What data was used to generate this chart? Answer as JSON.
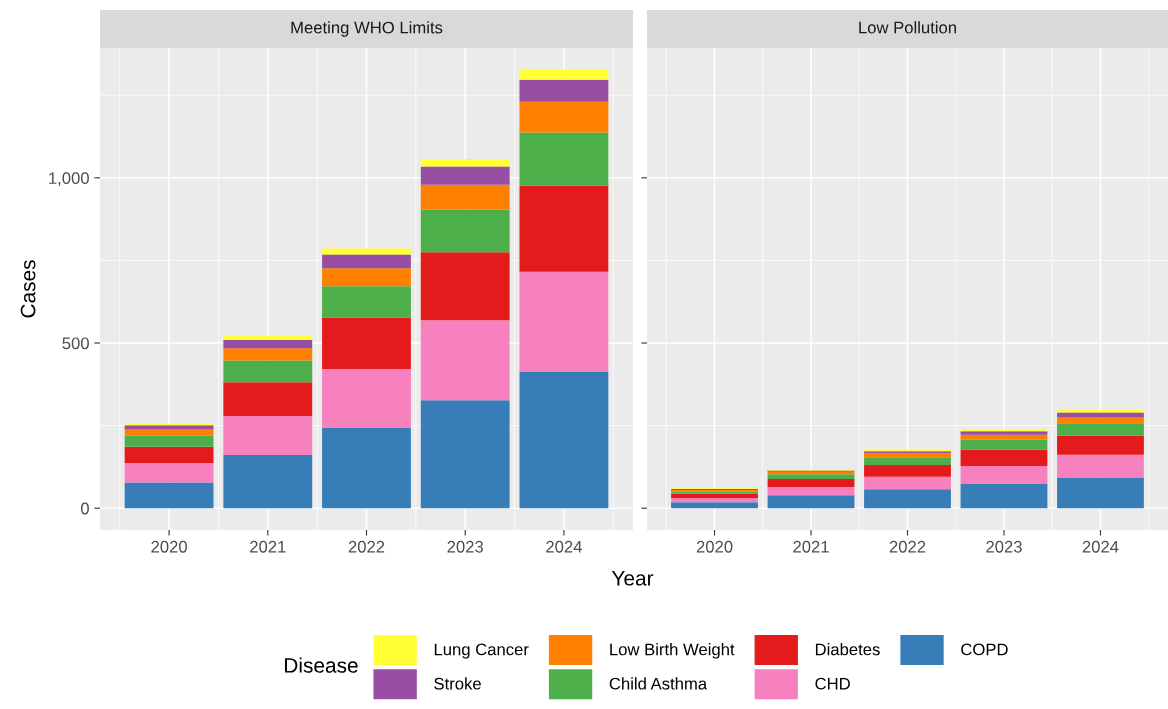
{
  "chart_data": [
    {
      "type": "bar",
      "title": "Meeting WHO Limits",
      "xlabel": "Year",
      "ylabel": "Cases",
      "legend_title": "Disease",
      "legend": "bottom",
      "stacked": true,
      "grid": true,
      "categories": [
        "2020",
        "2021",
        "2022",
        "2023",
        "2024"
      ],
      "ylim": [
        -66,
        1393
      ],
      "yticks": [
        0,
        500,
        {
          "value": 1000,
          "label": "1,000"
        }
      ],
      "series": [
        {
          "name": "COPD",
          "color": "#377eb8",
          "values": [
            78,
            161,
            243,
            327,
            412
          ]
        },
        {
          "name": "CHD",
          "color": "#f781bf",
          "values": [
            59,
            118,
            178,
            242,
            304
          ]
        },
        {
          "name": "Diabetes",
          "color": "#e41a1c",
          "values": [
            49,
            102,
            156,
            206,
            261
          ]
        },
        {
          "name": "Child Asthma",
          "color": "#4daf4a",
          "values": [
            33,
            66,
            95,
            129,
            160
          ]
        },
        {
          "name": "Low Birth Weight",
          "color": "#ff7f00",
          "values": [
            19,
            37,
            54,
            75,
            93
          ]
        },
        {
          "name": "Stroke",
          "color": "#984ea3",
          "values": [
            13,
            25,
            42,
            55,
            67
          ]
        },
        {
          "name": "Lung Cancer",
          "color": "#ffff33",
          "values": [
            5,
            13,
            18,
            23,
            30
          ]
        }
      ]
    },
    {
      "type": "bar",
      "title": "Low Pollution",
      "stacked": true,
      "grid": true,
      "tick_labels": "x",
      "categories": [
        "2020",
        "2021",
        "2022",
        "2023",
        "2024"
      ],
      "ylim": [
        -66,
        1393
      ],
      "yticks": [
        {
          "value": 0,
          "label": null
        },
        {
          "value": 500,
          "label": null
        },
        {
          "value": 1000,
          "label": null
        }
      ],
      "series": [
        {
          "color": "#377eb8",
          "values": [
            18,
            39,
            57,
            75,
            93
          ]
        },
        {
          "color": "#f781bf",
          "values": [
            13,
            25,
            38,
            53,
            69
          ]
        },
        {
          "color": "#e41a1c",
          "values": [
            13,
            24,
            36,
            50,
            57
          ]
        },
        {
          "color": "#4daf4a",
          "values": [
            6,
            15,
            23,
            30,
            38
          ]
        },
        {
          "color": "#ff7f00",
          "values": [
            5,
            7,
            12,
            14,
            19
          ]
        },
        {
          "color": "#984ea3",
          "values": [
            3,
            4,
            6,
            11,
            14
          ]
        },
        {
          "color": "#ffff33",
          "values": [
            2,
            3,
            4,
            5,
            7
          ]
        }
      ]
    }
  ]
}
